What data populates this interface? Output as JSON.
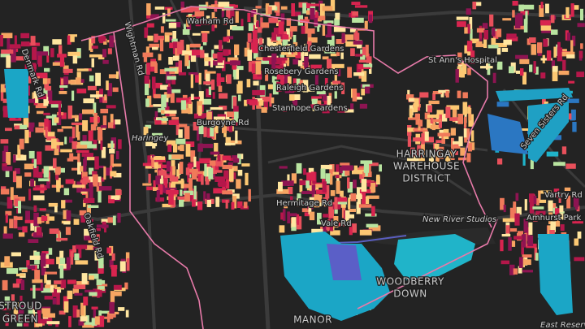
{
  "labels": {
    "warham_rd": "Warham Rd",
    "wightman_rd": "Wightman Rd",
    "denmark_rd": "Denmark Rd",
    "chesterfield_gardens": "Chesterfield Gardens",
    "rosebery_gardens": "Rosebery Gardens",
    "raleigh_gardens": "Raleigh Gardens",
    "stanhope_gardens": "Stanhope Gardens",
    "st_anns_hospital": "St Ann's Hospital",
    "burgoyne_rd": "Burgoyne Rd",
    "haringey": "Haringey",
    "harringay_warehouse_district_1": "HARRINGAY",
    "harringay_warehouse_district_2": "WAREHOUSE",
    "harringay_warehouse_district_3": "DISTRICT",
    "seven_sisters_rd": "Seven Sisters Rd",
    "hermitage_rd": "Hermitage Rd",
    "vale_rd": "Vale Rd",
    "new_river_studios": "New River Studios",
    "vartry_rd": "Vartry Rd",
    "amhurst_park": "Amhurst Park",
    "oakfield_rd": "Oakfield Rd",
    "woodberry_down_1": "WOODBERRY",
    "woodberry_down_2": "DOWN",
    "manor_house": "MANOR",
    "stroud_green_1": "STROUD",
    "stroud_green_2": "GREEN",
    "east_reservoir": "East Reservoir"
  }
}
